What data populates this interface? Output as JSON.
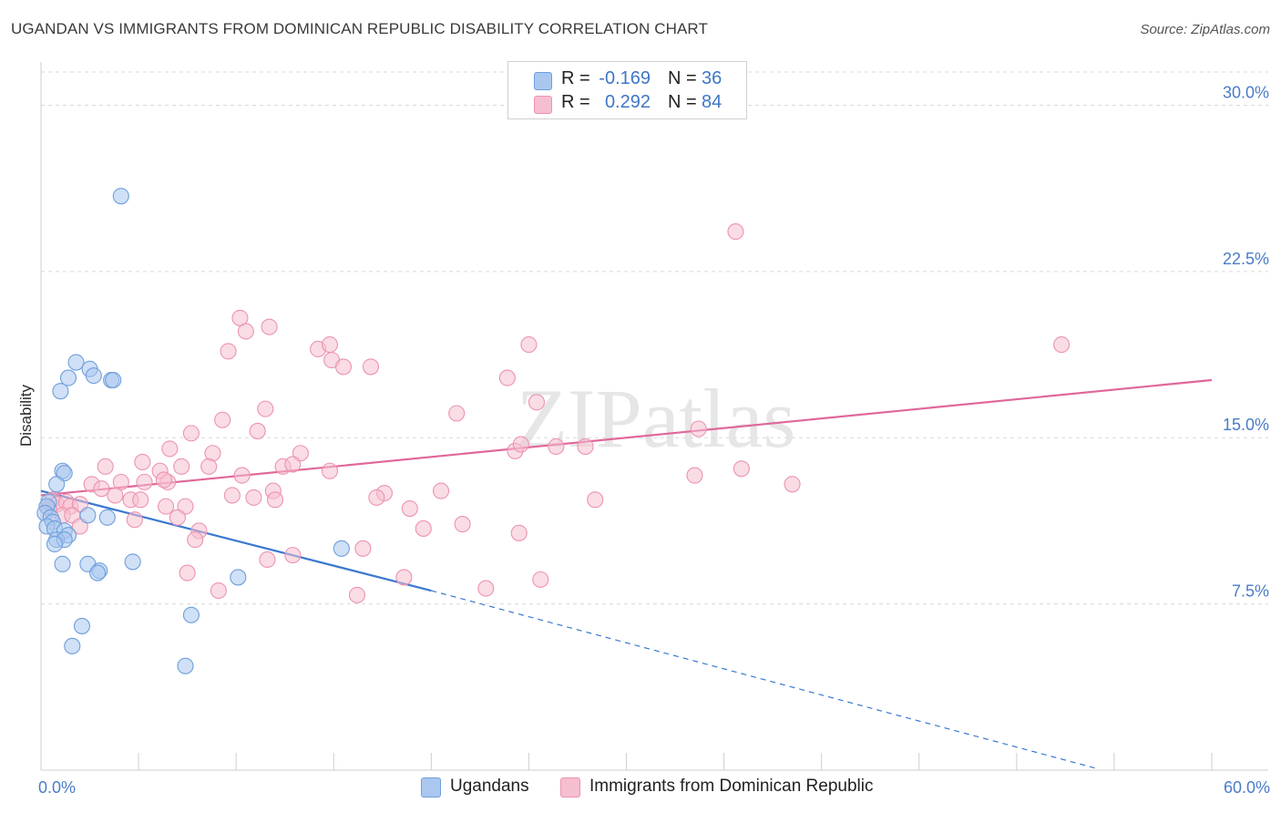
{
  "title": "UGANDAN VS IMMIGRANTS FROM DOMINICAN REPUBLIC DISABILITY CORRELATION CHART",
  "source": "Source: ZipAtlas.com",
  "watermark": "ZIPatlas",
  "colors": {
    "blue_fill": "#a9c7ef",
    "blue_stroke": "#6e9fdc",
    "blue_line": "#3a78d0",
    "pink_fill": "#f6bfd0",
    "pink_stroke": "#ec93b0",
    "pink_line": "#e0679a",
    "tick_text": "#4a7cc8",
    "grid": "#d9d9d9"
  },
  "legend": {
    "rows": [
      {
        "r_label": "R =",
        "r_value": "-0.169",
        "n_label": "N =",
        "n_value": "36"
      },
      {
        "r_label": "R =",
        "r_value": "0.292",
        "n_label": "N =",
        "n_value": "84"
      }
    ]
  },
  "bottom_legend": {
    "ugandans": "Ugandans",
    "dominican": "Immigrants from Dominican Republic"
  },
  "chart_data": {
    "type": "scatter",
    "title": "UGANDAN VS IMMIGRANTS FROM DOMINICAN REPUBLIC DISABILITY CORRELATION CHART",
    "xlabel": "",
    "ylabel": "Disability",
    "xlim": [
      0,
      60
    ],
    "ylim": [
      0,
      31.5
    ],
    "x_tick_labels": [
      {
        "value": 0,
        "label": "0.0%"
      },
      {
        "value": 60,
        "label": "60.0%"
      }
    ],
    "y_tick_labels": [
      {
        "value": 7.5,
        "label": "7.5%"
      },
      {
        "value": 15,
        "label": "15.0%"
      },
      {
        "value": 22.5,
        "label": "22.5%"
      },
      {
        "value": 30,
        "label": "30.0%"
      }
    ],
    "series": [
      {
        "name": "Ugandans",
        "r": -0.169,
        "n": 36,
        "trend": {
          "x0": 0,
          "y0": 12.6,
          "x1": 20,
          "y1": 8.1,
          "dash_to_x": 54,
          "dash_to_y": 0.1
        },
        "points": [
          [
            4.1,
            25.9
          ],
          [
            1.8,
            18.4
          ],
          [
            2.5,
            18.1
          ],
          [
            3.6,
            17.6
          ],
          [
            1.4,
            17.7
          ],
          [
            2.7,
            17.8
          ],
          [
            3.7,
            17.6
          ],
          [
            1.0,
            17.1
          ],
          [
            1.1,
            13.5
          ],
          [
            1.2,
            13.4
          ],
          [
            0.8,
            12.9
          ],
          [
            0.4,
            12.1
          ],
          [
            0.3,
            11.9
          ],
          [
            0.2,
            11.6
          ],
          [
            0.5,
            11.4
          ],
          [
            0.6,
            11.2
          ],
          [
            0.3,
            11.0
          ],
          [
            0.7,
            10.9
          ],
          [
            1.2,
            10.8
          ],
          [
            1.4,
            10.6
          ],
          [
            0.8,
            10.4
          ],
          [
            1.2,
            10.4
          ],
          [
            0.7,
            10.2
          ],
          [
            2.4,
            11.5
          ],
          [
            3.4,
            11.4
          ],
          [
            1.1,
            9.3
          ],
          [
            2.4,
            9.3
          ],
          [
            3.0,
            9.0
          ],
          [
            2.9,
            8.9
          ],
          [
            4.7,
            9.4
          ],
          [
            10.1,
            8.7
          ],
          [
            15.4,
            10.0
          ],
          [
            7.7,
            7.0
          ],
          [
            2.1,
            6.5
          ],
          [
            1.6,
            5.6
          ],
          [
            7.4,
            4.7
          ]
        ]
      },
      {
        "name": "Immigrants from Dominican Republic",
        "r": 0.292,
        "n": 84,
        "trend": {
          "x0": 0,
          "y0": 12.4,
          "x1": 60,
          "y1": 17.6
        },
        "points": [
          [
            35.6,
            24.3
          ],
          [
            52.3,
            19.2
          ],
          [
            10.2,
            20.4
          ],
          [
            11.7,
            20.0
          ],
          [
            10.5,
            19.8
          ],
          [
            14.2,
            19.0
          ],
          [
            14.8,
            19.2
          ],
          [
            9.6,
            18.9
          ],
          [
            14.9,
            18.5
          ],
          [
            15.5,
            18.2
          ],
          [
            16.9,
            18.2
          ],
          [
            25.0,
            19.2
          ],
          [
            23.9,
            17.7
          ],
          [
            25.4,
            16.6
          ],
          [
            11.5,
            16.3
          ],
          [
            21.3,
            16.1
          ],
          [
            9.3,
            15.8
          ],
          [
            7.7,
            15.2
          ],
          [
            11.1,
            15.3
          ],
          [
            33.7,
            15.4
          ],
          [
            6.6,
            14.5
          ],
          [
            8.8,
            14.3
          ],
          [
            13.3,
            14.3
          ],
          [
            24.3,
            14.4
          ],
          [
            26.4,
            14.6
          ],
          [
            27.9,
            14.6
          ],
          [
            24.6,
            14.7
          ],
          [
            5.2,
            13.9
          ],
          [
            3.3,
            13.7
          ],
          [
            6.1,
            13.5
          ],
          [
            7.2,
            13.7
          ],
          [
            8.6,
            13.7
          ],
          [
            12.4,
            13.7
          ],
          [
            12.9,
            13.8
          ],
          [
            14.8,
            13.5
          ],
          [
            10.3,
            13.3
          ],
          [
            6.5,
            13.0
          ],
          [
            5.3,
            13.0
          ],
          [
            6.3,
            13.1
          ],
          [
            4.1,
            13.0
          ],
          [
            2.6,
            12.9
          ],
          [
            3.1,
            12.7
          ],
          [
            35.9,
            13.6
          ],
          [
            33.5,
            13.3
          ],
          [
            38.5,
            12.9
          ],
          [
            11.9,
            12.6
          ],
          [
            17.6,
            12.5
          ],
          [
            20.5,
            12.6
          ],
          [
            17.2,
            12.3
          ],
          [
            3.8,
            12.4
          ],
          [
            4.6,
            12.2
          ],
          [
            5.1,
            12.2
          ],
          [
            9.8,
            12.4
          ],
          [
            0.6,
            12.2
          ],
          [
            0.8,
            12.0
          ],
          [
            1.3,
            12.1
          ],
          [
            1.5,
            11.9
          ],
          [
            0.4,
            11.8
          ],
          [
            2.0,
            12.0
          ],
          [
            6.4,
            11.9
          ],
          [
            10.9,
            12.3
          ],
          [
            7.4,
            11.9
          ],
          [
            18.9,
            11.8
          ],
          [
            28.4,
            12.2
          ],
          [
            1.1,
            11.5
          ],
          [
            1.6,
            11.5
          ],
          [
            4.8,
            11.3
          ],
          [
            7.0,
            11.4
          ],
          [
            2.0,
            11.0
          ],
          [
            8.1,
            10.8
          ],
          [
            19.6,
            10.9
          ],
          [
            21.6,
            11.1
          ],
          [
            24.5,
            10.7
          ],
          [
            7.9,
            10.4
          ],
          [
            16.5,
            10.0
          ],
          [
            11.6,
            9.5
          ],
          [
            12.9,
            9.7
          ],
          [
            7.5,
            8.9
          ],
          [
            18.6,
            8.7
          ],
          [
            22.8,
            8.2
          ],
          [
            25.6,
            8.6
          ],
          [
            9.1,
            8.1
          ],
          [
            16.2,
            7.9
          ],
          [
            12.0,
            12.2
          ]
        ]
      }
    ]
  }
}
